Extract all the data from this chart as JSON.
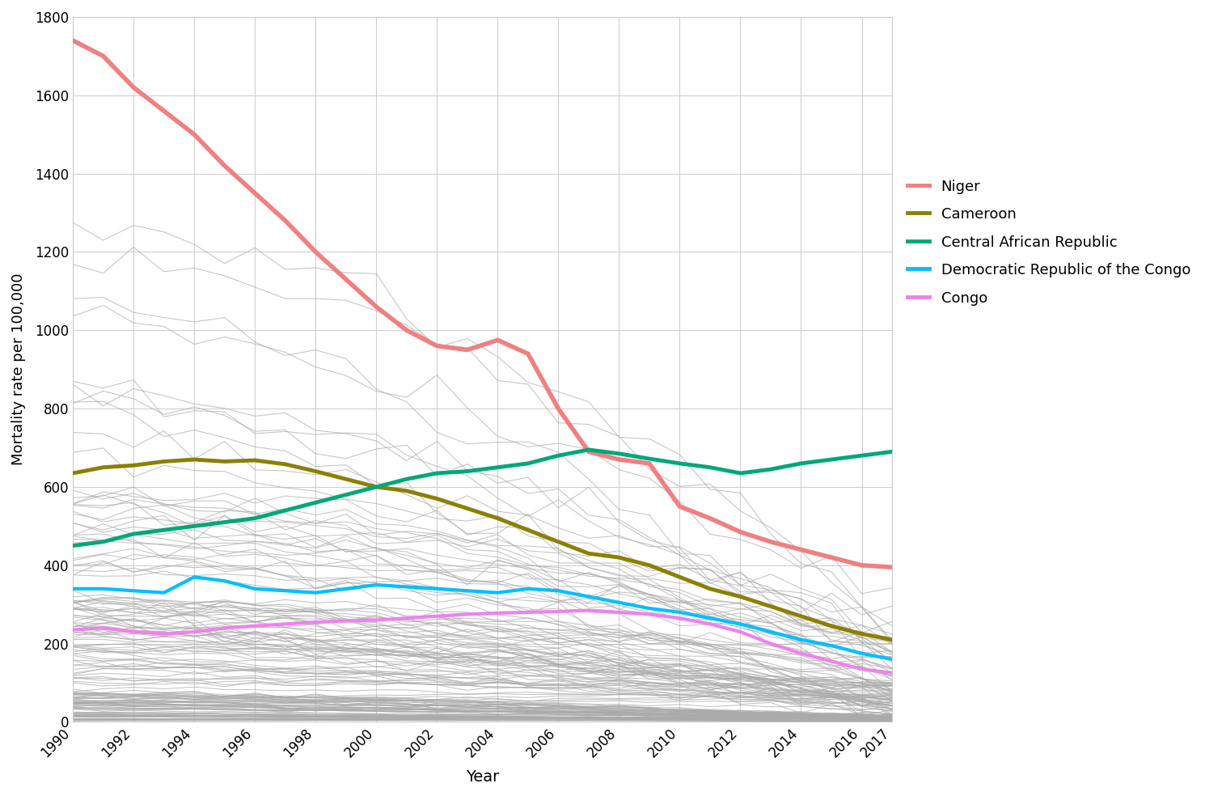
{
  "years": [
    1990,
    1991,
    1992,
    1993,
    1994,
    1995,
    1996,
    1997,
    1998,
    1999,
    2000,
    2001,
    2002,
    2003,
    2004,
    2005,
    2006,
    2007,
    2008,
    2009,
    2010,
    2011,
    2012,
    2013,
    2014,
    2015,
    2016,
    2017
  ],
  "niger": [
    1740,
    1700,
    1620,
    1560,
    1500,
    1420,
    1350,
    1280,
    1200,
    1130,
    1060,
    1000,
    960,
    950,
    975,
    940,
    800,
    690,
    670,
    660,
    550,
    520,
    485,
    460,
    440,
    420,
    400,
    395
  ],
  "cameroon": [
    635,
    650,
    655,
    665,
    670,
    665,
    668,
    658,
    640,
    620,
    600,
    590,
    570,
    545,
    520,
    490,
    460,
    430,
    420,
    400,
    370,
    340,
    320,
    295,
    270,
    245,
    225,
    210
  ],
  "car": [
    450,
    460,
    480,
    490,
    500,
    510,
    520,
    540,
    560,
    580,
    600,
    620,
    635,
    640,
    650,
    660,
    680,
    695,
    685,
    672,
    660,
    650,
    635,
    645,
    660,
    670,
    680,
    690
  ],
  "drc": [
    340,
    340,
    335,
    330,
    370,
    360,
    340,
    335,
    330,
    340,
    350,
    345,
    340,
    335,
    330,
    340,
    335,
    320,
    305,
    290,
    280,
    265,
    250,
    230,
    210,
    195,
    175,
    160
  ],
  "congo": [
    235,
    240,
    230,
    225,
    230,
    240,
    245,
    250,
    255,
    258,
    260,
    265,
    270,
    275,
    278,
    280,
    282,
    285,
    280,
    275,
    265,
    250,
    230,
    200,
    175,
    155,
    135,
    125
  ],
  "niger_color": "#f08080",
  "cameroon_color": "#8b8000",
  "car_color": "#00a878",
  "drc_color": "#00bfff",
  "congo_color": "#ee82ee",
  "background_color": "#ffffff",
  "grid_color": "#d0d0d0",
  "ylabel": "Mortality rate per 100,000",
  "xlabel": "Year",
  "ylim": [
    0,
    1800
  ],
  "yticks": [
    0,
    200,
    400,
    600,
    800,
    1000,
    1200,
    1400,
    1600,
    1800
  ],
  "xticks": [
    1990,
    1992,
    1994,
    1996,
    1998,
    2000,
    2002,
    2004,
    2006,
    2008,
    2010,
    2012,
    2014,
    2016,
    2017
  ],
  "legend_labels": [
    "Niger",
    "Cameroon",
    "Central African Republic",
    "Democratic Republic of the Congo",
    "Congo"
  ],
  "lw_niger": 4.0,
  "lw_cameroon": 3.5,
  "lw_car": 3.5,
  "lw_drc": 3.0,
  "lw_congo": 3.0,
  "lw_bg": 0.75
}
